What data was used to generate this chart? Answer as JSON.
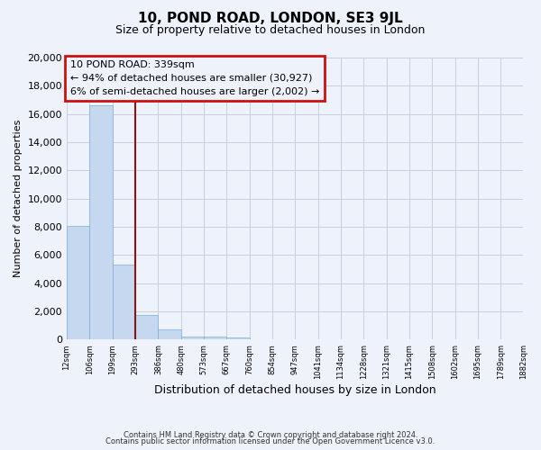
{
  "title": "10, POND ROAD, LONDON, SE3 9JL",
  "subtitle": "Size of property relative to detached houses in London",
  "xlabel": "Distribution of detached houses by size in London",
  "ylabel": "Number of detached properties",
  "bar_values": [
    8100,
    16600,
    5300,
    1750,
    750,
    250,
    200,
    150,
    0,
    0,
    0,
    0,
    0,
    0,
    0,
    0,
    0,
    0,
    0,
    0
  ],
  "bin_labels": [
    "12sqm",
    "106sqm",
    "199sqm",
    "293sqm",
    "386sqm",
    "480sqm",
    "573sqm",
    "667sqm",
    "760sqm",
    "854sqm",
    "947sqm",
    "1041sqm",
    "1134sqm",
    "1228sqm",
    "1321sqm",
    "1415sqm",
    "1508sqm",
    "1602sqm",
    "1695sqm",
    "1789sqm",
    "1882sqm"
  ],
  "bar_color": "#c5d8f0",
  "bar_edge_color": "#7aaed4",
  "vline_x": 3.0,
  "vline_color": "#8b1515",
  "annotation_title": "10 POND ROAD: 339sqm",
  "annotation_line1": "← 94% of detached houses are smaller (30,927)",
  "annotation_line2": "6% of semi-detached houses are larger (2,002) →",
  "annotation_box_color": "#cc1111",
  "ylim": [
    0,
    20000
  ],
  "yticks": [
    0,
    2000,
    4000,
    6000,
    8000,
    10000,
    12000,
    14000,
    16000,
    18000,
    20000
  ],
  "background_color": "#eef2fa",
  "grid_color": "#c5cfe0",
  "footnote1": "Contains HM Land Registry data © Crown copyright and database right 2024.",
  "footnote2": "Contains public sector information licensed under the Open Government Licence v3.0."
}
